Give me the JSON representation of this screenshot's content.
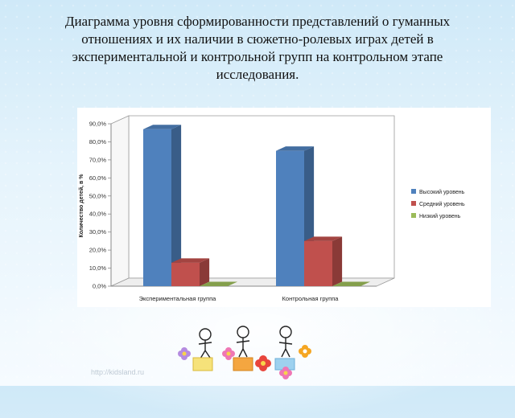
{
  "title_lines": [
    "Диаграмма уровня сформированности представлений о гуманных",
    "отношениях и их наличии в сюжетно-ролевых играх детей в",
    "экспериментальной  и контрольной групп на контрольном этапе",
    "исследования."
  ],
  "footer_url": "http://kidsland.ru",
  "chart_data": {
    "type": "bar",
    "title": "",
    "xlabel": "",
    "ylabel": "Количество детей, в %",
    "ylim": [
      0,
      90
    ],
    "y_ticks": [
      "0,0%",
      "10,0%",
      "20,0%",
      "30,0%",
      "40,0%",
      "50,0%",
      "60,0%",
      "70,0%",
      "80,0%",
      "90,0%"
    ],
    "categories": [
      "Экспериментальная группа",
      "Контрольная группа"
    ],
    "series": [
      {
        "name": "Высокий уровень",
        "color": "#4f81bd",
        "values": [
          87,
          75
        ]
      },
      {
        "name": "Средний уровень",
        "color": "#c0504d",
        "values": [
          13,
          25
        ]
      },
      {
        "name": "Низкий уровень",
        "color": "#9bbb59",
        "values": [
          0,
          0
        ]
      }
    ],
    "grid": false,
    "legend_position": "right"
  }
}
